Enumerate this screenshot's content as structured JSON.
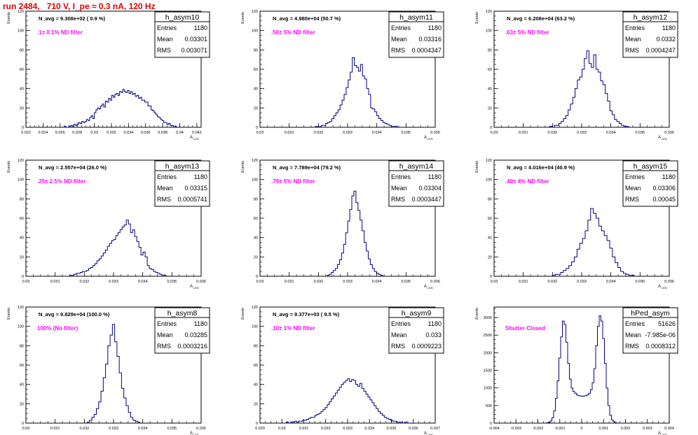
{
  "page_title": "run 2484,   710 V, I_pe ≈ 0.3 nA, 120 Hz",
  "ylabel": "Events",
  "xlabel_main": "A",
  "xlabel_sub": "LED",
  "stats_labels": {
    "entries": "Entries",
    "mean": "Mean",
    "rms": "RMS"
  },
  "colors": {
    "title": "#e00000",
    "annotation": "#ff00ff",
    "histogram": "#000080",
    "axis": "#000000"
  },
  "chart_data": [
    {
      "type": "histogram",
      "name": "h_asym10",
      "navg": "N_avg = 9.308e+02 ( 0.9 %)",
      "annotation": ".1± 0.1% ND filter",
      "stats": {
        "entries": "1180",
        "mean": "0.03301",
        "rms": "0.003071"
      },
      "xlim": [
        0.022,
        0.0425
      ],
      "ylim": [
        0,
        120
      ],
      "xticks": [
        "0.022",
        "0.024",
        "0.026",
        "0.028",
        "0.03",
        "0.032",
        "0.034",
        "0.036",
        "0.038",
        "0.04",
        "0.042"
      ],
      "yticks": [
        "0",
        "20",
        "40",
        "60",
        "80",
        "100",
        "120"
      ],
      "bin_edges": [
        0.0265,
        0.0396
      ],
      "counts": [
        1,
        0,
        0,
        1,
        2,
        0,
        3,
        2,
        3,
        5,
        4,
        6,
        5,
        6,
        8,
        7,
        10,
        12,
        9,
        15,
        18,
        20,
        19,
        22,
        24,
        21,
        27,
        26,
        30,
        28,
        33,
        31,
        34,
        35,
        33,
        37,
        36,
        39,
        37,
        36,
        38,
        35,
        37,
        34,
        35,
        32,
        33,
        30,
        31,
        28,
        28,
        26,
        26,
        22,
        22,
        18,
        17,
        15,
        13,
        11,
        10,
        8,
        7,
        5,
        5,
        3,
        4,
        2,
        2,
        1,
        1
      ]
    },
    {
      "type": "histogram",
      "name": "h_asym11",
      "navg": "N_avg = 4.980e+04 (50.7 %)",
      "annotation": ".50± 5% ND filter",
      "stats": {
        "entries": "1180",
        "mean": "0.03316",
        "rms": "0.0004347"
      },
      "xlim": [
        0.03,
        0.036
      ],
      "ylim": [
        0,
        120
      ],
      "xticks": [
        "0.03",
        "0.031",
        "0.032",
        "0.033",
        "0.034",
        "0.035",
        "0.036"
      ],
      "yticks": [
        "0",
        "20",
        "40",
        "60",
        "80",
        "100",
        "120"
      ],
      "bin_edges": [
        0.0319,
        0.0347
      ],
      "counts": [
        1,
        0,
        1,
        2,
        2,
        4,
        5,
        6,
        9,
        12,
        15,
        18,
        23,
        28,
        34,
        41,
        49,
        57,
        72,
        64,
        62,
        58,
        65,
        53,
        50,
        40,
        34,
        20,
        19,
        16,
        12,
        9,
        7,
        5,
        4,
        3,
        2,
        1,
        1,
        1
      ]
    },
    {
      "type": "histogram",
      "name": "h_asym12",
      "navg": "N_avg = 6.208e+04 (63.2 %)",
      "annotation": ".63± 5% ND filter",
      "stats": {
        "entries": "1180",
        "mean": "0.0332",
        "rms": "0.0004247"
      },
      "xlim": [
        0.03,
        0.036
      ],
      "ylim": [
        0,
        120
      ],
      "xticks": [
        "0.03",
        "0.031",
        "0.032",
        "0.033",
        "0.034",
        "0.035",
        "0.036"
      ],
      "yticks": [
        "0",
        "20",
        "40",
        "60",
        "80",
        "100",
        "120"
      ],
      "bin_edges": [
        0.0319,
        0.0346
      ],
      "counts": [
        1,
        0,
        2,
        2,
        4,
        6,
        9,
        12,
        18,
        24,
        31,
        40,
        49,
        52,
        60,
        71,
        79,
        66,
        62,
        75,
        60,
        57,
        48,
        44,
        35,
        27,
        17,
        13,
        8,
        6,
        4,
        2,
        1,
        1
      ]
    },
    {
      "type": "histogram",
      "name": "h_asym13",
      "navg": "N_avg = 2.557e+04 (26.0 %)",
      "annotation": ".25± 2.5% ND filter",
      "stats": {
        "entries": "1180",
        "mean": "0.03315",
        "rms": "0.0005741"
      },
      "xlim": [
        0.03,
        0.036
      ],
      "ylim": [
        0,
        120
      ],
      "xticks": [
        "0.03",
        "0.031",
        "0.032",
        "0.033",
        "0.034",
        "0.035",
        "0.036"
      ],
      "yticks": [
        "0",
        "20",
        "40",
        "60",
        "80",
        "100",
        "120"
      ],
      "bin_edges": [
        0.0315,
        0.0348
      ],
      "counts": [
        1,
        1,
        2,
        3,
        3,
        4,
        5,
        5,
        6,
        8,
        9,
        11,
        13,
        16,
        18,
        21,
        24,
        27,
        31,
        34,
        37,
        38,
        42,
        45,
        48,
        51,
        53,
        58,
        54,
        45,
        48,
        41,
        36,
        30,
        22,
        25,
        20,
        11,
        8,
        7,
        5,
        4,
        3,
        2,
        1,
        1
      ]
    },
    {
      "type": "histogram",
      "name": "h_asym14",
      "navg": "N_avg = 7.789e+04 (79.2 %)",
      "annotation": ".79± 5% ND filter",
      "stats": {
        "entries": "1180",
        "mean": "0.03304",
        "rms": "0.0003447"
      },
      "xlim": [
        0.03,
        0.036
      ],
      "ylim": [
        0,
        120
      ],
      "xticks": [
        "0.03",
        "0.031",
        "0.032",
        "0.033",
        "0.034",
        "0.035",
        "0.036"
      ],
      "yticks": [
        "0",
        "20",
        "40",
        "60",
        "80",
        "100",
        "120"
      ],
      "bin_edges": [
        0.0323,
        0.0342
      ],
      "counts": [
        1,
        2,
        4,
        6,
        8,
        12,
        17,
        24,
        33,
        45,
        57,
        69,
        83,
        88,
        76,
        68,
        58,
        47,
        35,
        26,
        18,
        12,
        8,
        5,
        3,
        2,
        1
      ]
    },
    {
      "type": "histogram",
      "name": "h_asym15",
      "navg": "N_avg = 4.016e+04 (40.9 %)",
      "annotation": ".40± 4% ND filter",
      "stats": {
        "entries": "1180",
        "mean": "0.03306",
        "rms": "0.00045"
      },
      "xlim": [
        0.03,
        0.036
      ],
      "ylim": [
        0,
        120
      ],
      "xticks": [
        "0.03",
        "0.031",
        "0.032",
        "0.033",
        "0.034",
        "0.035",
        "0.036"
      ],
      "yticks": [
        "0",
        "20",
        "40",
        "60",
        "80",
        "100",
        "120"
      ],
      "bin_edges": [
        0.032,
        0.0348
      ],
      "counts": [
        1,
        2,
        2,
        4,
        6,
        8,
        11,
        15,
        20,
        28,
        34,
        39,
        47,
        58,
        70,
        65,
        60,
        52,
        47,
        42,
        37,
        29,
        20,
        14,
        9,
        5,
        3,
        2,
        1,
        1
      ]
    },
    {
      "type": "histogram",
      "name": "h_asym8",
      "navg": "N_avg = 9.829e+04 (100.0 %)",
      "annotation": "100% (No filter)",
      "stats": {
        "entries": "1180",
        "mean": "0.03285",
        "rms": "0.0003216"
      },
      "xlim": [
        0.03,
        0.036
      ],
      "ylim": [
        0,
        120
      ],
      "xticks": [
        "0.03",
        "0.031",
        "0.032",
        "0.033",
        "0.034",
        "0.035",
        "0.036"
      ],
      "yticks": [
        "0",
        "20",
        "40",
        "60",
        "80",
        "100",
        "120"
      ],
      "bin_edges": [
        0.0321,
        0.0339
      ],
      "counts": [
        1,
        3,
        6,
        9,
        15,
        22,
        33,
        47,
        61,
        80,
        91,
        102,
        84,
        69,
        52,
        36,
        26,
        18,
        11,
        6,
        3,
        2,
        1
      ]
    },
    {
      "type": "histogram",
      "name": "h_asym9",
      "navg": "N_avg = 9.377e+03 ( 9.5 %)",
      "annotation": ".10± 1% ND filter",
      "stats": {
        "entries": "1180",
        "mean": "0.033",
        "rms": "0.0009223"
      },
      "xlim": [
        0.029,
        0.037
      ],
      "ylim": [
        0,
        120
      ],
      "xticks": [
        "0.029",
        "0.03",
        "0.031",
        "0.032",
        "0.033",
        "0.034",
        "0.035",
        "0.036",
        "0.037"
      ],
      "yticks": [
        "0",
        "20",
        "40",
        "60",
        "80",
        "100",
        "120"
      ],
      "bin_edges": [
        0.0302,
        0.0357
      ],
      "counts": [
        1,
        0,
        1,
        1,
        2,
        1,
        2,
        2,
        3,
        3,
        4,
        5,
        6,
        6,
        8,
        9,
        10,
        12,
        14,
        16,
        19,
        22,
        25,
        28,
        31,
        34,
        37,
        40,
        42,
        44,
        46,
        43,
        45,
        44,
        40,
        38,
        41,
        36,
        33,
        30,
        27,
        24,
        21,
        18,
        15,
        12,
        10,
        8,
        6,
        5,
        4,
        3,
        2,
        2,
        1,
        1,
        1,
        0,
        1
      ]
    },
    {
      "type": "histogram",
      "name": "hPed_asym",
      "navg": "",
      "annotation": "Shutter Closed",
      "stats": {
        "entries": "51626",
        "mean": "-7.985e-06",
        "rms": "0.0008312"
      },
      "xlim": [
        -0.004,
        0.004
      ],
      "ylim": [
        0,
        3300
      ],
      "xticks": [
        "-0.004",
        "-0.003",
        "-0.002",
        "-0.001",
        "0",
        "0.001",
        "0.002",
        "0.003",
        "0.004"
      ],
      "yticks": [
        "0",
        "500",
        "1000",
        "1500",
        "2000",
        "2500",
        "3000"
      ],
      "bin_edges": [
        -0.0016,
        0.0016
      ],
      "counts": [
        10,
        20,
        60,
        150,
        350,
        700,
        1200,
        1850,
        2450,
        2900,
        2800,
        2300,
        1700,
        1250,
        1000,
        900,
        850,
        800,
        780,
        770,
        760,
        770,
        780,
        800,
        850,
        950,
        1150,
        1550,
        2200,
        2750,
        3050,
        2900,
        2400,
        1700,
        1000,
        500,
        220,
        90,
        40,
        15
      ]
    }
  ]
}
